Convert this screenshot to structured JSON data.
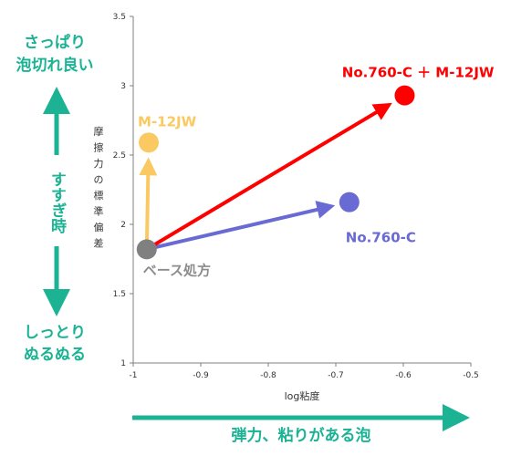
{
  "chart_data": {
    "type": "scatter",
    "xlabel": "log粘度",
    "ylabel": "摩擦力の標準偏差",
    "xlim": [
      -1,
      -0.5
    ],
    "ylim": [
      1,
      3.5
    ],
    "x_ticks": [
      "-1",
      "-0.9",
      "-0.8",
      "-0.7",
      "-0.6",
      "-0.5"
    ],
    "y_ticks": [
      "1",
      "1.5",
      "2",
      "2.5",
      "3",
      "3.5"
    ],
    "grid": false,
    "points": [
      {
        "label": "ベース処方",
        "x": -0.98,
        "y": 1.82,
        "color": "#808080"
      },
      {
        "label": "M-12JW",
        "x": -0.977,
        "y": 2.59,
        "color": "#fbc962"
      },
      {
        "label": "No.760-C",
        "x": -0.68,
        "y": 2.16,
        "color": "#6a6ad4"
      },
      {
        "label": "No.760-C ＋ M-12JW",
        "x": -0.598,
        "y": 2.93,
        "color": "#ff0000"
      }
    ],
    "arrows": [
      {
        "from": "ベース処方",
        "to": "M-12JW",
        "color": "#fbc962"
      },
      {
        "from": "ベース処方",
        "to": "No.760-C",
        "color": "#6a6ad4"
      },
      {
        "from": "ベース処方",
        "to": "No.760-C ＋ M-12JW",
        "color": "#ff0000"
      }
    ]
  },
  "annotations": {
    "top_left": [
      "さっぱり",
      "泡切れ良い"
    ],
    "middle_left": [
      "すすぎ時"
    ],
    "bottom_left": [
      "しっとり",
      "ぬるぬる"
    ],
    "bottom_arrow": "弾力、粘りがある泡"
  },
  "colors": {
    "accent": "#1bb394",
    "axis": "#7f7f7f"
  }
}
